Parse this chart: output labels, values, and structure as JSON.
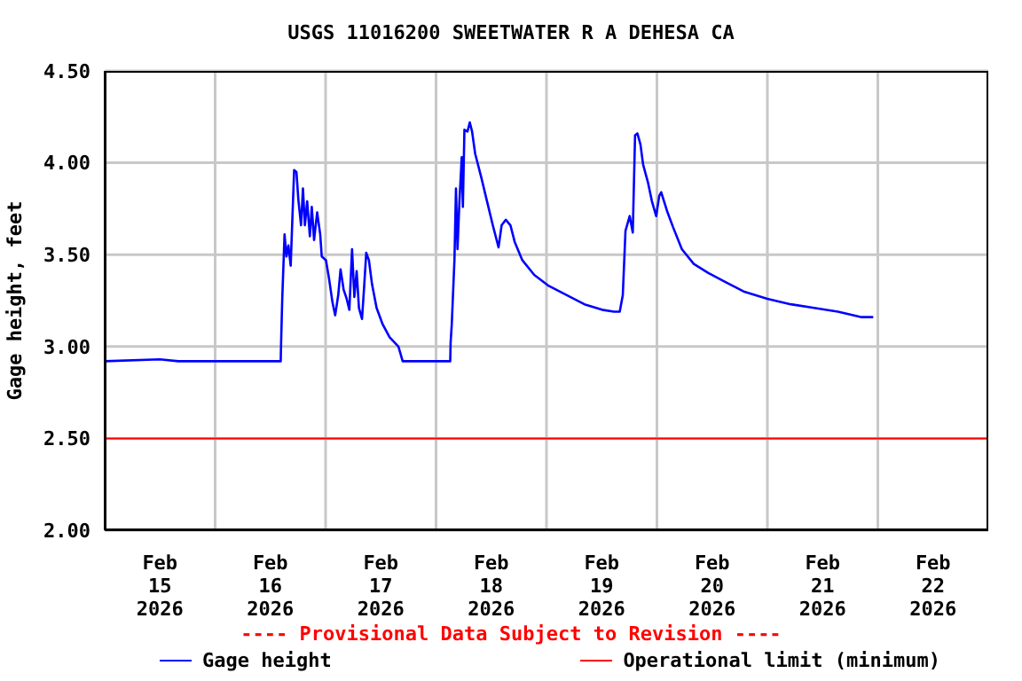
{
  "chart_data": {
    "type": "line",
    "title": "USGS 11016200 SWEETWATER R A DEHESA CA",
    "ylabel": "Gage height, feet",
    "x": [
      "2026-02-15T00:00",
      "2026-02-15T12:00",
      "2026-02-15T16:00",
      "2026-02-16T14:15",
      "2026-02-16T14:20",
      "2026-02-16T14:35",
      "2026-02-16T15:05",
      "2026-02-16T15:30",
      "2026-02-16T15:55",
      "2026-02-16T16:25",
      "2026-02-16T17:10",
      "2026-02-16T17:40",
      "2026-02-16T18:05",
      "2026-02-16T18:40",
      "2026-02-16T19:05",
      "2026-02-16T19:30",
      "2026-02-16T20:00",
      "2026-02-16T20:35",
      "2026-02-16T21:00",
      "2026-02-16T21:30",
      "2026-02-16T22:10",
      "2026-02-16T22:50",
      "2026-02-16T23:10",
      "2026-02-17T00:05",
      "2026-02-17T00:45",
      "2026-02-17T01:30",
      "2026-02-17T02:05",
      "2026-02-17T02:45",
      "2026-02-17T03:15",
      "2026-02-17T03:55",
      "2026-02-17T04:35",
      "2026-02-17T05:10",
      "2026-02-17T05:45",
      "2026-02-17T06:15",
      "2026-02-17T06:45",
      "2026-02-17T07:15",
      "2026-02-17T07:55",
      "2026-02-17T08:25",
      "2026-02-17T08:50",
      "2026-02-17T09:25",
      "2026-02-17T10:05",
      "2026-02-17T11:05",
      "2026-02-17T12:25",
      "2026-02-17T13:55",
      "2026-02-17T15:50",
      "2026-02-17T16:45",
      "2026-02-18T03:05",
      "2026-02-18T03:10",
      "2026-02-18T03:25",
      "2026-02-18T04:00",
      "2026-02-18T04:20",
      "2026-02-18T04:40",
      "2026-02-18T05:05",
      "2026-02-18T05:35",
      "2026-02-18T05:50",
      "2026-02-18T06:10",
      "2026-02-18T06:50",
      "2026-02-18T07:20",
      "2026-02-18T07:50",
      "2026-02-18T08:30",
      "2026-02-18T09:50",
      "2026-02-18T11:05",
      "2026-02-18T12:20",
      "2026-02-18T13:35",
      "2026-02-18T14:15",
      "2026-02-18T15:10",
      "2026-02-18T16:10",
      "2026-02-18T17:05",
      "2026-02-18T18:45",
      "2026-02-18T21:20",
      "2026-02-19T00:30",
      "2026-02-19T04:25",
      "2026-02-19T08:15",
      "2026-02-19T12:05",
      "2026-02-19T14:40",
      "2026-02-19T15:55",
      "2026-02-19T16:35",
      "2026-02-19T17:10",
      "2026-02-19T18:05",
      "2026-02-19T18:45",
      "2026-02-19T19:15",
      "2026-02-19T19:45",
      "2026-02-19T20:25",
      "2026-02-19T21:00",
      "2026-02-19T22:05",
      "2026-02-19T22:55",
      "2026-02-19T23:50",
      "2026-02-20T00:30",
      "2026-02-20T00:55",
      "2026-02-20T02:10",
      "2026-02-20T03:30",
      "2026-02-20T05:25",
      "2026-02-20T08:00",
      "2026-02-20T11:10",
      "2026-02-20T15:00",
      "2026-02-20T18:50",
      "2026-02-21T00:00",
      "2026-02-21T05:05",
      "2026-02-21T10:10",
      "2026-02-21T15:20",
      "2026-02-21T20:30",
      "2026-02-21T23:00"
    ],
    "series": [
      {
        "name": "Gage height",
        "color": "#0000ff",
        "values": [
          2.92,
          2.93,
          2.92,
          2.92,
          3.02,
          3.26,
          3.61,
          3.49,
          3.55,
          3.44,
          3.96,
          3.95,
          3.8,
          3.66,
          3.86,
          3.66,
          3.79,
          3.6,
          3.76,
          3.58,
          3.73,
          3.61,
          3.49,
          3.47,
          3.37,
          3.24,
          3.17,
          3.28,
          3.42,
          3.31,
          3.26,
          3.2,
          3.53,
          3.27,
          3.41,
          3.21,
          3.15,
          3.34,
          3.51,
          3.47,
          3.34,
          3.21,
          3.12,
          3.05,
          3.0,
          2.92,
          2.92,
          3.02,
          3.12,
          3.47,
          3.86,
          3.53,
          3.79,
          4.03,
          3.76,
          4.18,
          4.17,
          4.22,
          4.17,
          4.05,
          3.92,
          3.79,
          3.66,
          3.54,
          3.66,
          3.69,
          3.66,
          3.57,
          3.47,
          3.39,
          3.33,
          3.28,
          3.23,
          3.2,
          3.19,
          3.19,
          3.28,
          3.63,
          3.71,
          3.62,
          4.15,
          4.16,
          4.1,
          3.99,
          3.89,
          3.79,
          3.71,
          3.82,
          3.84,
          3.74,
          3.65,
          3.53,
          3.45,
          3.4,
          3.35,
          3.3,
          3.26,
          3.23,
          3.21,
          3.19,
          3.16,
          3.16
        ]
      }
    ],
    "xlim": [
      "2026-02-15T00:00",
      "2026-02-23T00:00"
    ],
    "xticks": [
      {
        "value": "2026-02-15T12:00",
        "label": "Feb\n15\n2026"
      },
      {
        "value": "2026-02-16T12:00",
        "label": "Feb\n16\n2026"
      },
      {
        "value": "2026-02-17T12:00",
        "label": "Feb\n17\n2026"
      },
      {
        "value": "2026-02-18T12:00",
        "label": "Feb\n18\n2026"
      },
      {
        "value": "2026-02-19T12:00",
        "label": "Feb\n19\n2026"
      },
      {
        "value": "2026-02-20T12:00",
        "label": "Feb\n20\n2026"
      },
      {
        "value": "2026-02-21T12:00",
        "label": "Feb\n21\n2026"
      },
      {
        "value": "2026-02-22T12:00",
        "label": "Feb\n22\n2026"
      },
      {
        "value": "2026-02-16T00:00",
        "label": null
      },
      {
        "value": "2026-02-17T00:00",
        "label": null
      },
      {
        "value": "2026-02-18T00:00",
        "label": null
      },
      {
        "value": "2026-02-19T00:00",
        "label": null
      },
      {
        "value": "2026-02-20T00:00",
        "label": null
      },
      {
        "value": "2026-02-21T00:00",
        "label": null
      },
      {
        "value": "2026-02-22T00:00",
        "label": null
      }
    ],
    "ylim": [
      2.0,
      4.5
    ],
    "yticks": [
      {
        "value": 2.0,
        "label": "2.00"
      },
      {
        "value": 2.5,
        "label": "2.50"
      },
      {
        "value": 3.0,
        "label": "3.00"
      },
      {
        "value": 3.5,
        "label": "3.50"
      },
      {
        "value": 4.0,
        "label": "4.00"
      },
      {
        "value": 4.5,
        "label": "4.50"
      }
    ],
    "ref_lines": [
      {
        "axis": "y",
        "value": 2.5,
        "label": "Operational limit (minimum)",
        "color": "#ff0000"
      }
    ],
    "annotations": [
      "---- Provisional Data Subject to Revision ----"
    ],
    "grid": true,
    "legend": "bottom",
    "marker": "none",
    "line_style": "solid"
  }
}
